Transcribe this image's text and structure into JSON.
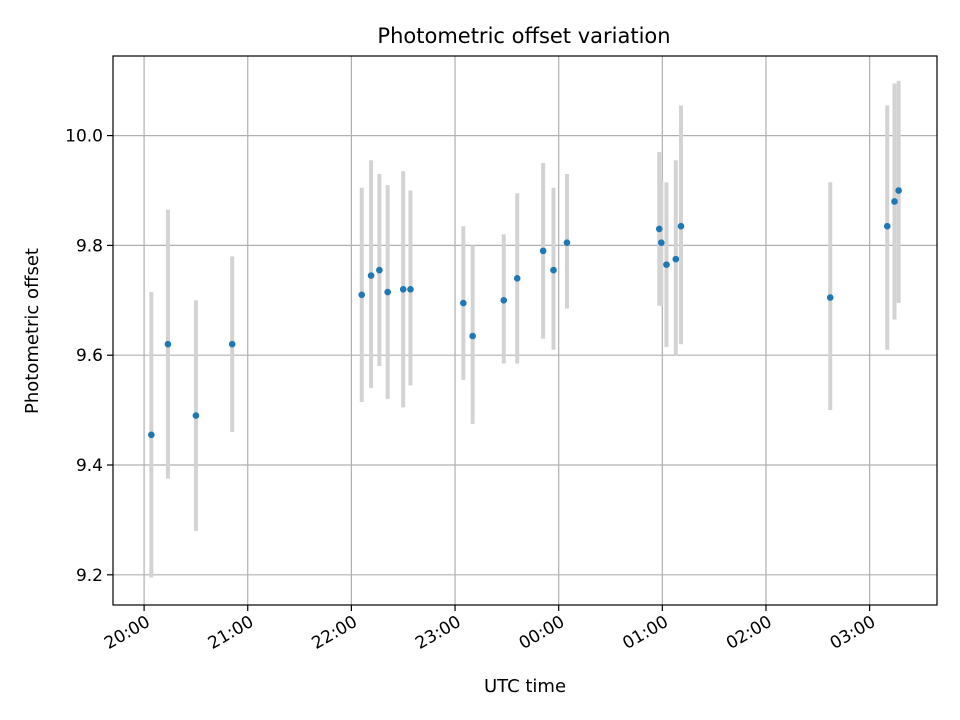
{
  "chart_data": {
    "type": "scatter",
    "title": "Photometric offset variation",
    "xlabel": "UTC time",
    "ylabel": "Photometric offset",
    "x_unit": "UTC time (hours; values past 24 fall after midnight)",
    "xlim": [
      19.7,
      27.65
    ],
    "ylim": [
      9.145,
      10.145
    ],
    "grid": true,
    "colors": {
      "marker": "#1f77b4",
      "errorbar": "#d3d3d3",
      "grid": "#b0b0b0"
    },
    "x_ticks": [
      {
        "value": 20,
        "label": "20:00"
      },
      {
        "value": 21,
        "label": "21:00"
      },
      {
        "value": 22,
        "label": "22:00"
      },
      {
        "value": 23,
        "label": "23:00"
      },
      {
        "value": 24,
        "label": "00:00"
      },
      {
        "value": 25,
        "label": "01:00"
      },
      {
        "value": 26,
        "label": "02:00"
      },
      {
        "value": 27,
        "label": "03:00"
      }
    ],
    "y_ticks": [
      {
        "value": 9.2,
        "label": "9.2"
      },
      {
        "value": 9.4,
        "label": "9.4"
      },
      {
        "value": 9.6,
        "label": "9.6"
      },
      {
        "value": 9.8,
        "label": "9.8"
      },
      {
        "value": 10.0,
        "label": "10.0"
      }
    ],
    "points": [
      {
        "x": 20.07,
        "y": 9.455,
        "lo": 9.195,
        "hi": 9.715
      },
      {
        "x": 20.23,
        "y": 9.62,
        "lo": 9.375,
        "hi": 9.865
      },
      {
        "x": 20.5,
        "y": 9.49,
        "lo": 9.28,
        "hi": 9.7
      },
      {
        "x": 20.85,
        "y": 9.62,
        "lo": 9.46,
        "hi": 9.78
      },
      {
        "x": 22.1,
        "y": 9.71,
        "lo": 9.515,
        "hi": 9.905
      },
      {
        "x": 22.19,
        "y": 9.745,
        "lo": 9.54,
        "hi": 9.955
      },
      {
        "x": 22.27,
        "y": 9.755,
        "lo": 9.58,
        "hi": 9.93
      },
      {
        "x": 22.35,
        "y": 9.715,
        "lo": 9.52,
        "hi": 9.91
      },
      {
        "x": 22.5,
        "y": 9.72,
        "lo": 9.505,
        "hi": 9.935
      },
      {
        "x": 22.57,
        "y": 9.72,
        "lo": 9.545,
        "hi": 9.9
      },
      {
        "x": 23.08,
        "y": 9.695,
        "lo": 9.555,
        "hi": 9.835
      },
      {
        "x": 23.17,
        "y": 9.635,
        "lo": 9.475,
        "hi": 9.8
      },
      {
        "x": 23.47,
        "y": 9.7,
        "lo": 9.585,
        "hi": 9.82
      },
      {
        "x": 23.6,
        "y": 9.74,
        "lo": 9.585,
        "hi": 9.895
      },
      {
        "x": 23.85,
        "y": 9.79,
        "lo": 9.63,
        "hi": 9.95
      },
      {
        "x": 23.95,
        "y": 9.755,
        "lo": 9.61,
        "hi": 9.905
      },
      {
        "x": 24.08,
        "y": 9.805,
        "lo": 9.685,
        "hi": 9.93
      },
      {
        "x": 24.97,
        "y": 9.83,
        "lo": 9.69,
        "hi": 9.97
      },
      {
        "x": 24.99,
        "y": 9.805,
        "lo": 9.69,
        "hi": 9.92
      },
      {
        "x": 25.04,
        "y": 9.765,
        "lo": 9.615,
        "hi": 9.915
      },
      {
        "x": 25.13,
        "y": 9.775,
        "lo": 9.6,
        "hi": 9.955
      },
      {
        "x": 25.18,
        "y": 9.835,
        "lo": 9.62,
        "hi": 10.055
      },
      {
        "x": 26.62,
        "y": 9.705,
        "lo": 9.5,
        "hi": 9.915
      },
      {
        "x": 27.17,
        "y": 9.835,
        "lo": 9.61,
        "hi": 10.055
      },
      {
        "x": 27.24,
        "y": 9.88,
        "lo": 9.665,
        "hi": 10.095
      },
      {
        "x": 27.28,
        "y": 9.9,
        "lo": 9.695,
        "hi": 10.1
      }
    ]
  }
}
